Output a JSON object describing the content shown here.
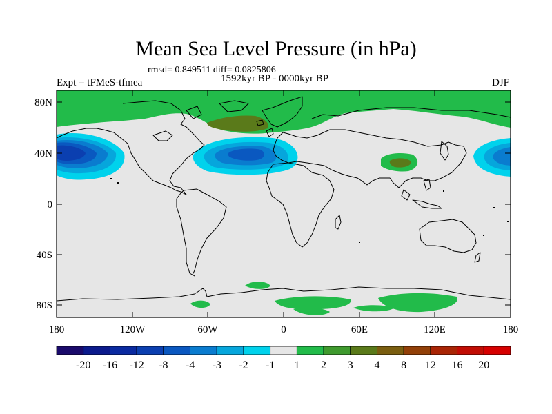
{
  "title": "Mean Sea Level Pressure (in hPa)",
  "stats": "rmsd= 0.849511 diff= 0.0825806",
  "period": "1592kyr BP - 0000kyr BP",
  "expt": "Expt = tFMeS-tfmea",
  "season": "DJF",
  "lat_ticks": [
    "80N",
    "40N",
    "0",
    "40S",
    "80S"
  ],
  "lon_ticks": [
    "180",
    "120W",
    "60W",
    "0",
    "60E",
    "120E",
    "180"
  ],
  "colorbar": {
    "labels": [
      "-20",
      "-16",
      "-12",
      "-8",
      "-4",
      "-3",
      "-2",
      "-1",
      "1",
      "2",
      "3",
      "4",
      "8",
      "12",
      "16",
      "20"
    ],
    "colors": [
      "#1a0a6b",
      "#0b1a8c",
      "#0a2aa0",
      "#0b3fb0",
      "#0a58c0",
      "#0a7ccf",
      "#06a6dc",
      "#00d2ec",
      "#e6e6e6",
      "#22bb4a",
      "#3f9a2e",
      "#5a7a1a",
      "#7a5e10",
      "#924008",
      "#a92505",
      "#c10d04",
      "#d60000"
    ]
  },
  "legend_colors": {
    "negative": "#0a58c0",
    "positive": "#22bb4a",
    "zero": "#e6e6e6"
  }
}
